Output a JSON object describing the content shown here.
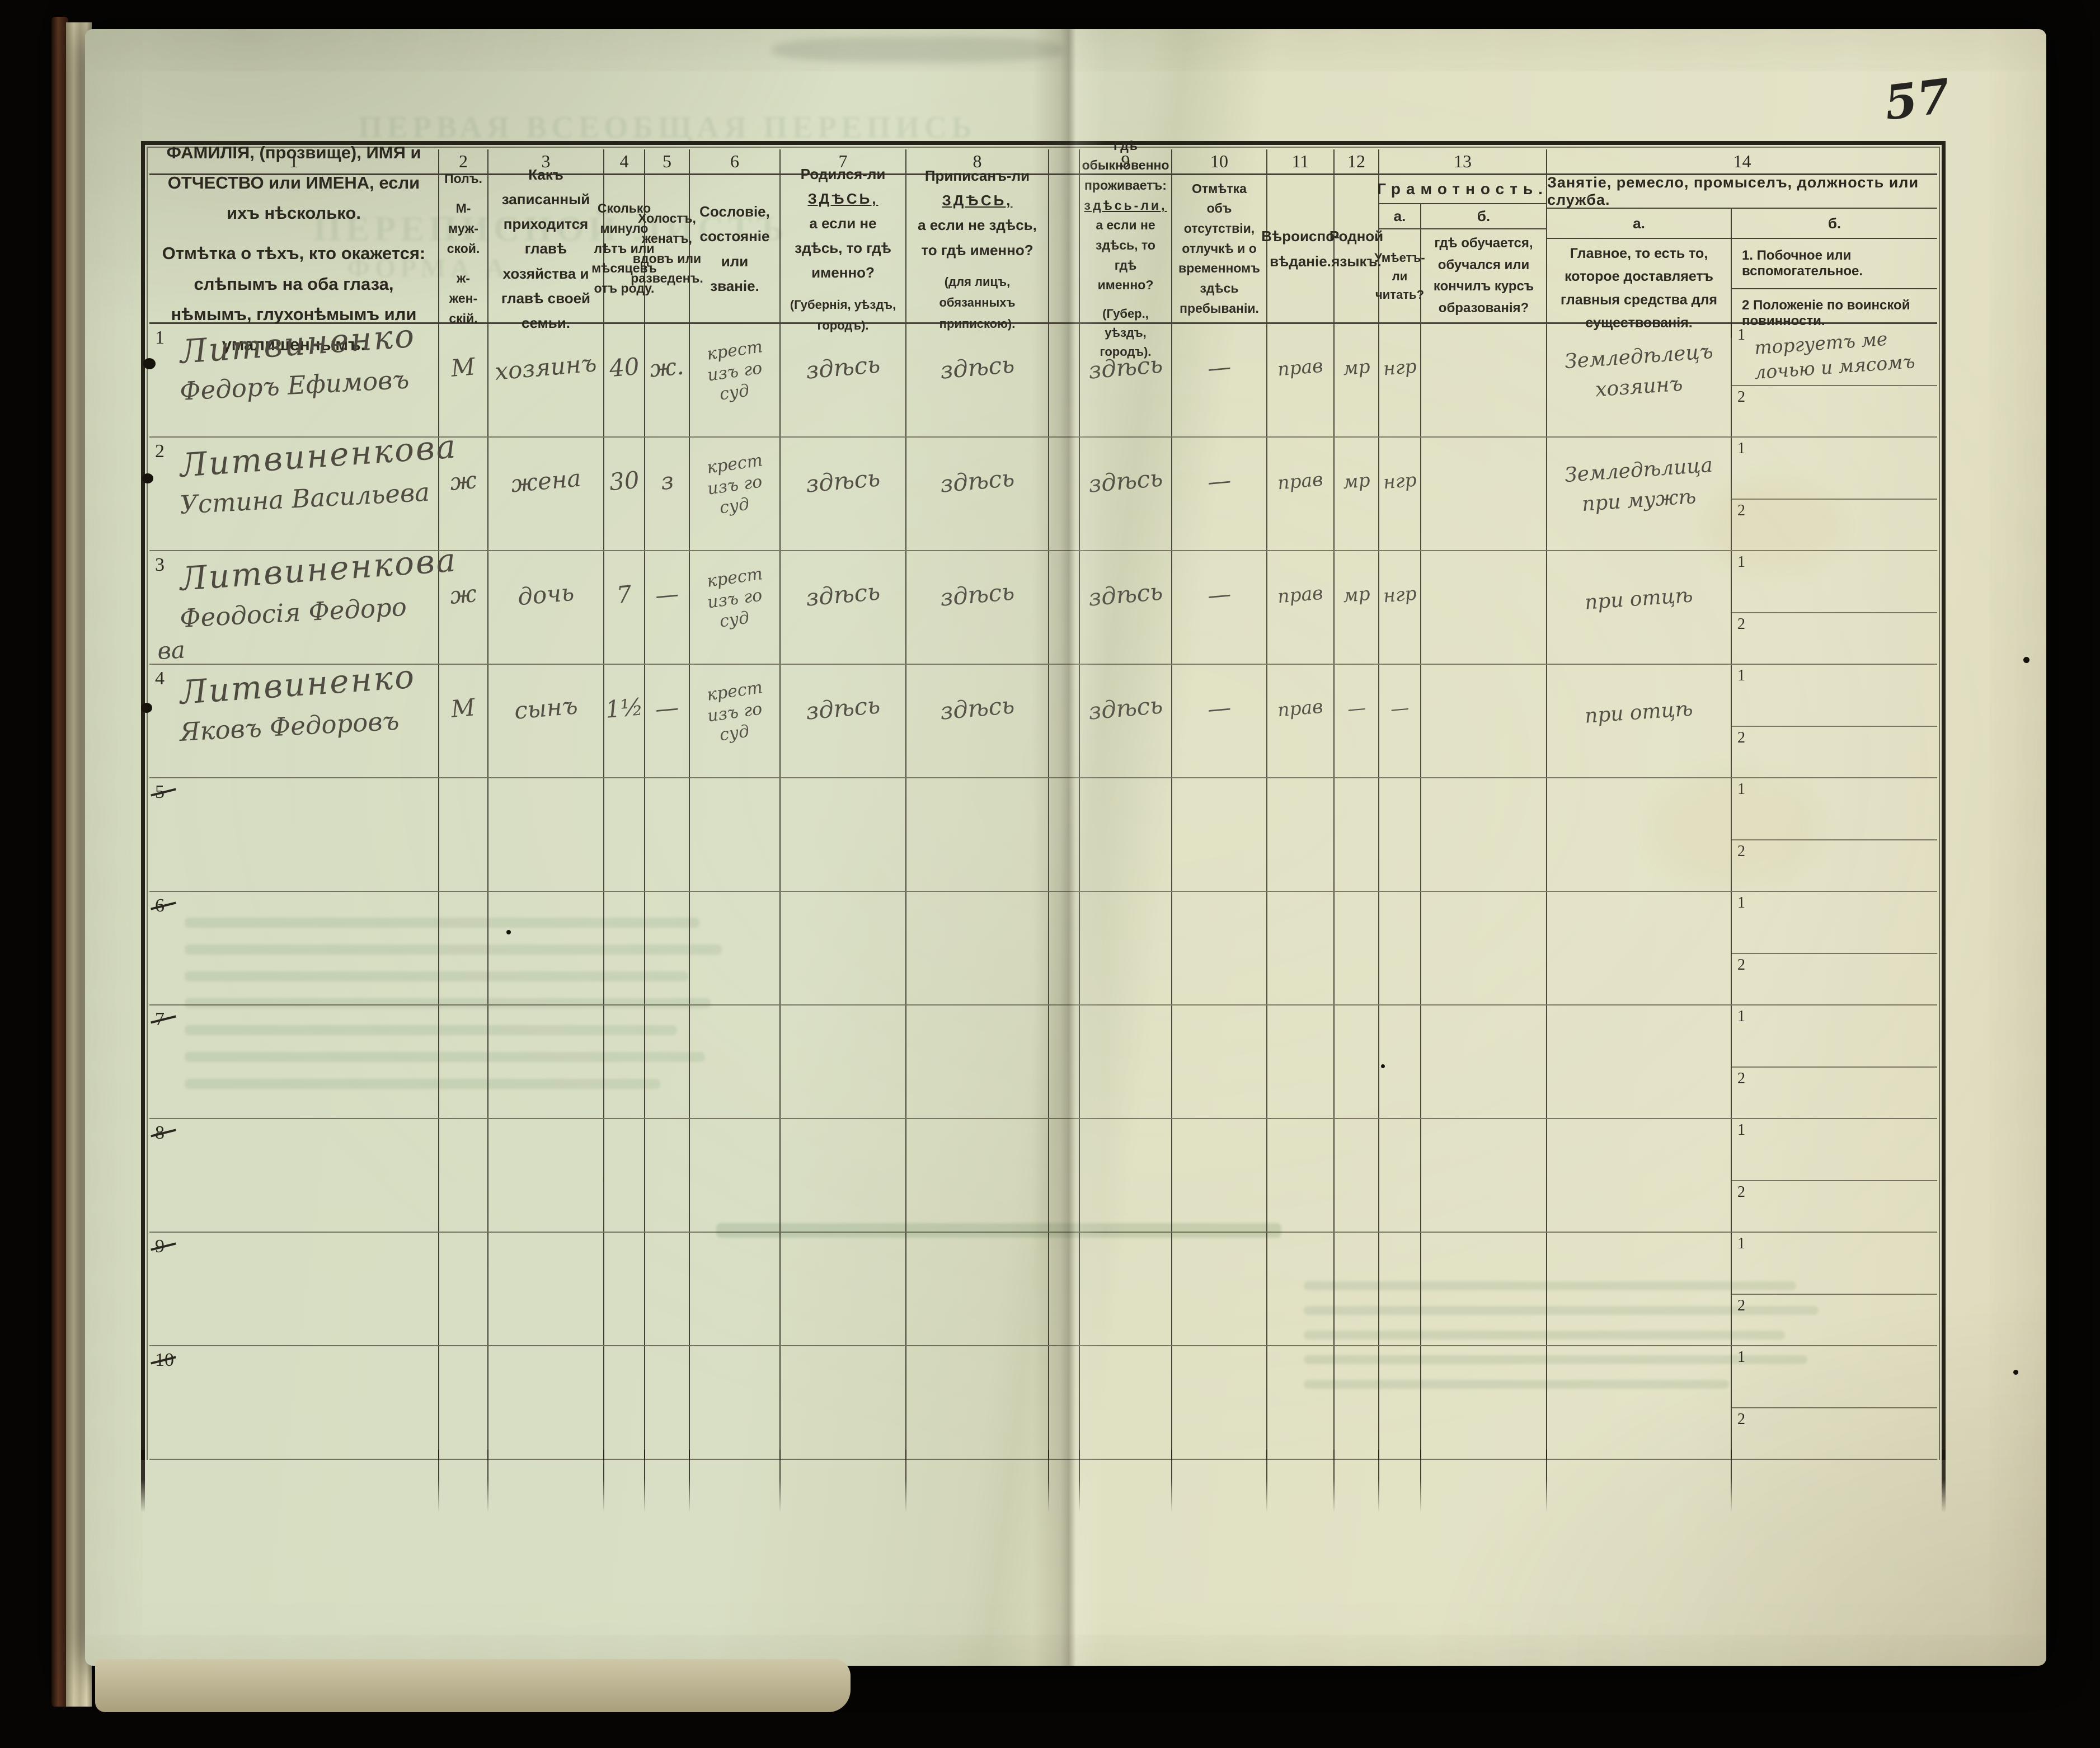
{
  "page": {
    "page_number": "57"
  },
  "bleedthrough": {
    "title_top": "ПЕРВАЯ ВСЕОБЩАЯ ПЕРЕПИСЬ",
    "title_mid": "ПЕРЕПИСНОЙ ЛИСТЪ",
    "title_form": "ФОРМА А."
  },
  "table": {
    "col_numbers": [
      "1",
      "2",
      "3",
      "4",
      "5",
      "6",
      "7",
      "8",
      "9",
      "10",
      "11",
      "12",
      "13",
      "14"
    ],
    "sub1": "1",
    "sub2": "2",
    "headers": {
      "c1": {
        "p1": "ФАМИЛІЯ, (прозвище), ИМЯ и ОТЧЕСТВО или ИМЕНА, если ихъ нѣсколько.",
        "p2": "Отмѣтка о тѣхъ, кто окажется: слѣпымъ на оба глаза, нѣмымъ, глухонѣмымъ или умалишеннымъ."
      },
      "c2": {
        "l1": "Полъ.",
        "l2": "М-муж-ской.",
        "l3": "ж-жен-скій."
      },
      "c3": "Какъ записанный приходится главѣ хозяйства и главѣ своей семьи.",
      "c4": "Сколько минуло лѣтъ или мѣсяцевъ отъ роду.",
      "c5": "Холостъ, женатъ, вдовъ или разведенъ.",
      "c6": "Сословіе, состояніе или званіе.",
      "c7": {
        "pre": "Родился-ли ",
        "emph": "ЗДѢСЬ,",
        "post": "а если не здѣсь, то гдѣ именно?",
        "note": "(Губернія, уѣздъ, городъ)."
      },
      "c8": {
        "pre": "Приписанъ-ли ",
        "emph": "ЗДѢСЬ,",
        "post": "а если не здѣсь, то гдѣ именно?",
        "note": "(для лицъ, обязанныхъ припискою)."
      },
      "c9": {
        "pre": "Гдѣ обыкновенно проживаетъ: ",
        "emph": "здѣсь-ли,",
        "post": "а если не здѣсь, то гдѣ именно?",
        "note": "(Губер., уѣздъ, городъ)."
      },
      "c10": "Отмѣтка объ отсутствіи, отлучкѣ и о временномъ здѣсь пребываніи.",
      "c11": "Вѣроиспо-вѣданіе.",
      "c12": "Родной языкъ.",
      "c13": {
        "title": "Грамотность.",
        "a_label": "а.",
        "b_label": "б.",
        "a_desc": "Умѣетъ-ли читать?",
        "b_desc": "гдѣ обучается, обучался или кончилъ курсъ образованія?"
      },
      "c14": {
        "title": "Занятіе, ремесло, промыселъ, должность или служба.",
        "a_label": "а.",
        "b_label": "б.",
        "a_desc": "Главное, то есть то, которое доставляетъ главныя средства для существованія.",
        "b1": "1. Побочное или вспомогательное.",
        "b2": "2 Положеніе по воинской повинности."
      }
    },
    "rows": [
      {
        "num": "1",
        "struck": false,
        "surname": "Литвиненко",
        "name": "Федоръ Ефимовъ",
        "name2": "",
        "sex": "М",
        "relation": "хозяинъ",
        "age": "40",
        "marital": "ж.",
        "estate": [
          "крест",
          "изъ го",
          "суд"
        ],
        "born": "здѣсь",
        "registered": "здѣсь",
        "resides": "здѣсь",
        "absence": "—",
        "religion": "прав",
        "language": "мр",
        "reads": "нгр",
        "education": "",
        "occupation": [
          "Земледѣлецъ",
          "хозяинъ"
        ],
        "side": [
          "торгуетъ ме",
          "лочью и мясомъ"
        ],
        "military": []
      },
      {
        "num": "2",
        "struck": false,
        "surname": "Литвиненкова",
        "name": "Устина Васильева",
        "name2": "",
        "sex": "ж",
        "relation": "жена",
        "age": "30",
        "marital": "з",
        "estate": [
          "крест",
          "изъ го",
          "суд"
        ],
        "born": "здѣсь",
        "registered": "здѣсь",
        "resides": "здѣсь",
        "absence": "—",
        "religion": "прав",
        "language": "мр",
        "reads": "нгр",
        "education": "",
        "occupation": [
          "Земледѣлица",
          "при мужѣ"
        ],
        "side": [],
        "military": []
      },
      {
        "num": "3",
        "struck": false,
        "surname": "Литвиненкова",
        "name": "Феодосія Федоро",
        "name2": "ва",
        "sex": "ж",
        "relation": "дочь",
        "age": "7",
        "marital": "—",
        "estate": [
          "крест",
          "изъ го",
          "суд"
        ],
        "born": "здѣсь",
        "registered": "здѣсь",
        "resides": "здѣсь",
        "absence": "—",
        "religion": "прав",
        "language": "мр",
        "reads": "нгр",
        "education": "",
        "occupation": [
          "при отцѣ"
        ],
        "side": [],
        "military": []
      },
      {
        "num": "4",
        "struck": false,
        "surname": "Литвиненко",
        "name": "Яковъ Федоровъ",
        "name2": "",
        "sex": "М",
        "relation": "сынъ",
        "age": "1½",
        "marital": "—",
        "estate": [
          "крест",
          "изъ го",
          "суд"
        ],
        "born": "здѣсь",
        "registered": "здѣсь",
        "resides": "здѣсь",
        "absence": "—",
        "religion": "прав",
        "language": "—",
        "reads": "—",
        "education": "",
        "occupation": [
          "при отцѣ"
        ],
        "side": [],
        "military": []
      },
      {
        "num": "5",
        "struck": true,
        "surname": "",
        "name": "",
        "name2": "",
        "sex": "",
        "relation": "",
        "age": "",
        "marital": "",
        "estate": [],
        "born": "",
        "registered": "",
        "resides": "",
        "absence": "",
        "religion": "",
        "language": "",
        "reads": "",
        "education": "",
        "occupation": [],
        "side": [],
        "military": []
      },
      {
        "num": "6",
        "struck": true,
        "surname": "",
        "name": "",
        "name2": "",
        "sex": "",
        "relation": "",
        "age": "",
        "marital": "",
        "estate": [],
        "born": "",
        "registered": "",
        "resides": "",
        "absence": "",
        "religion": "",
        "language": "",
        "reads": "",
        "education": "",
        "occupation": [],
        "side": [],
        "military": []
      },
      {
        "num": "7",
        "struck": true,
        "surname": "",
        "name": "",
        "name2": "",
        "sex": "",
        "relation": "",
        "age": "",
        "marital": "",
        "estate": [],
        "born": "",
        "registered": "",
        "resides": "",
        "absence": "",
        "religion": "",
        "language": "",
        "reads": "",
        "education": "",
        "occupation": [],
        "side": [],
        "military": []
      },
      {
        "num": "8",
        "struck": true,
        "surname": "",
        "name": "",
        "name2": "",
        "sex": "",
        "relation": "",
        "age": "",
        "marital": "",
        "estate": [],
        "born": "",
        "registered": "",
        "resides": "",
        "absence": "",
        "religion": "",
        "language": "",
        "reads": "",
        "education": "",
        "occupation": [],
        "side": [],
        "military": []
      },
      {
        "num": "9",
        "struck": true,
        "surname": "",
        "name": "",
        "name2": "",
        "sex": "",
        "relation": "",
        "age": "",
        "marital": "",
        "estate": [],
        "born": "",
        "registered": "",
        "resides": "",
        "absence": "",
        "religion": "",
        "language": "",
        "reads": "",
        "education": "",
        "occupation": [],
        "side": [],
        "military": []
      },
      {
        "num": "10",
        "struck": true,
        "surname": "",
        "name": "",
        "name2": "",
        "sex": "",
        "relation": "",
        "age": "",
        "marital": "",
        "estate": [],
        "born": "",
        "registered": "",
        "resides": "",
        "absence": "",
        "religion": "",
        "language": "",
        "reads": "",
        "education": "",
        "occupation": [],
        "side": [],
        "military": []
      }
    ]
  }
}
